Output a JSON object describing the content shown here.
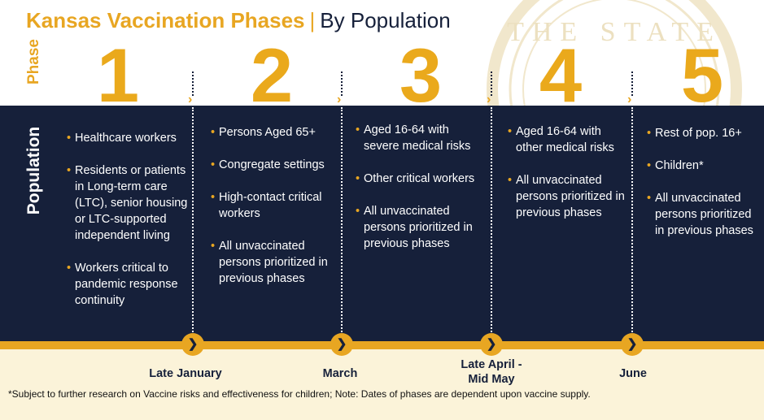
{
  "header": {
    "title_main": "Kansas Vaccination Phases",
    "separator": "|",
    "title_sub": "By Population"
  },
  "labels": {
    "phase": "Phase",
    "population": "Population"
  },
  "phases": [
    {
      "number": "1",
      "items": [
        "Healthcare workers",
        "Residents or patients in Long-term care (LTC), senior housing or LTC-supported independent living",
        "Workers critical to pandemic response continuity"
      ]
    },
    {
      "number": "2",
      "items": [
        "Persons Aged 65+",
        "Congregate settings",
        "High-contact critical workers",
        "All unvaccinated persons prioritized in previous phases"
      ]
    },
    {
      "number": "3",
      "items": [
        "Aged 16-64 with severe medical risks",
        "Other critical workers",
        "All unvaccinated persons prioritized in previous phases"
      ]
    },
    {
      "number": "4",
      "items": [
        "Aged 16-64 with other medical risks",
        "All unvaccinated persons prioritized in previous phases"
      ]
    },
    {
      "number": "5",
      "items": [
        "Rest of pop. 16+",
        "Children*",
        "All unvaccinated persons prioritized in previous phases"
      ]
    }
  ],
  "timeline": [
    {
      "date": "Late January"
    },
    {
      "date": "March"
    },
    {
      "date": "Late April - Mid May"
    },
    {
      "date": "June"
    }
  ],
  "seal_text": "THE STATE",
  "footnote": "*Subject to further research on Vaccine risks and effectiveness for children; Note: Dates of phases are dependent upon vaccine supply.",
  "colors": {
    "navy": "#16203a",
    "gold": "#e8a622",
    "cream": "#fbf3d9"
  }
}
